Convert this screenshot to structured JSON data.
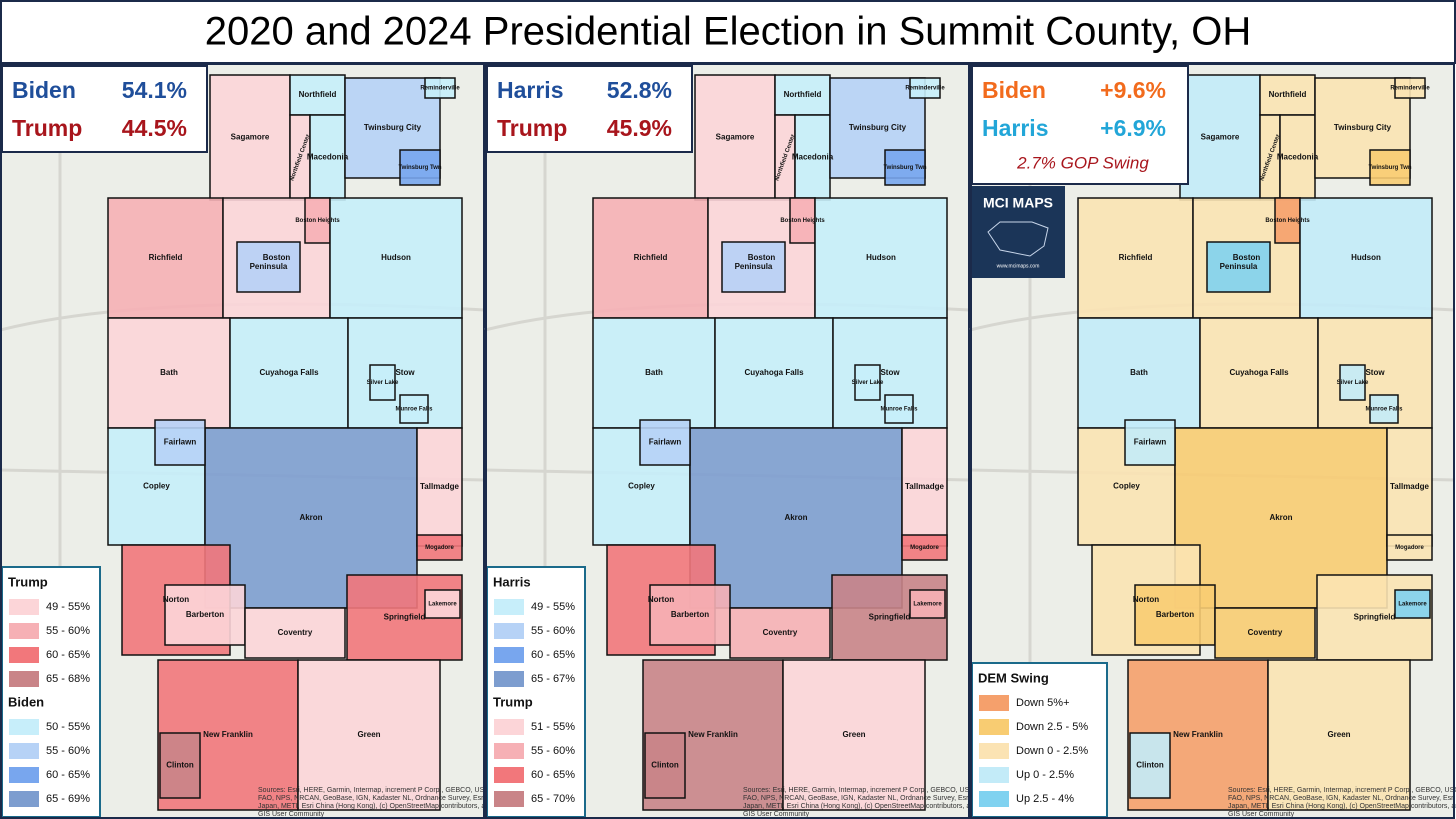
{
  "title": "2020 and 2024 Presidential Election in Summit County, OH",
  "places": [
    "Sagamore",
    "Northfield",
    "Northfield Center",
    "Macedonia",
    "Twinsburg City",
    "Twinsburg Twn",
    "Reminderville",
    "Richfield",
    "Boston",
    "Boston Heights",
    "Hudson",
    "Peninsula",
    "Bath",
    "Cuyahoga Falls",
    "Stow",
    "Silver Lake",
    "Munroe Falls",
    "Copley",
    "Akron",
    "Fairlawn",
    "Tallmadge",
    "Mogadore",
    "Norton",
    "Springfield",
    "Lakemore",
    "Barberton",
    "Coventry",
    "New Franklin",
    "Green",
    "Clinton"
  ],
  "panels": [
    {
      "results": [
        {
          "name": "Biden",
          "value": "54.1%",
          "color": "#1f4e9a"
        },
        {
          "name": "Trump",
          "value": "44.5%",
          "color": "#a8151c"
        }
      ],
      "legend": [
        {
          "title": "Trump",
          "items": [
            {
              "label": "49 - 55%",
              "color": "#fcd5d8"
            },
            {
              "label": "55 - 60%",
              "color": "#f6b0b5"
            },
            {
              "label": "60 - 65%",
              "color": "#f2777b"
            },
            {
              "label": "65 - 68%",
              "color": "#c98488"
            }
          ]
        },
        {
          "title": "Biden",
          "items": [
            {
              "label": "50 - 55%",
              "color": "#c7eefa"
            },
            {
              "label": "55 - 60%",
              "color": "#b6d2f6"
            },
            {
              "label": "60 - 65%",
              "color": "#78a6ee"
            },
            {
              "label": "65 - 69%",
              "color": "#7d9dcf"
            }
          ]
        }
      ],
      "fills": [
        "#fcd5d8",
        "#c7eefa",
        "#fcd5d8",
        "#c7eefa",
        "#b6d2f6",
        "#78a6ee",
        "#c7eefa",
        "#f6b0b5",
        "#fcd5d8",
        "#f6b0b5",
        "#c7eefa",
        "#b6d2f6",
        "#fcd5d8",
        "#c7eefa",
        "#c7eefa",
        "#c7eefa",
        "#c7eefa",
        "#c7eefa",
        "#7d9dcf",
        "#b6d2f6",
        "#fcd5d8",
        "#f2777b",
        "#f2777b",
        "#f2777b",
        "#fcd5d8",
        "#fcd5d8",
        "#fcd5d8",
        "#f2777b",
        "#fcd5d8",
        "#c98488"
      ]
    },
    {
      "results": [
        {
          "name": "Harris",
          "value": "52.8%",
          "color": "#1f4e9a"
        },
        {
          "name": "Trump",
          "value": "45.9%",
          "color": "#a8151c"
        }
      ],
      "legend": [
        {
          "title": "Harris",
          "items": [
            {
              "label": "49 - 55%",
              "color": "#c7eefa"
            },
            {
              "label": "55 - 60%",
              "color": "#b6d2f6"
            },
            {
              "label": "60 - 65%",
              "color": "#78a6ee"
            },
            {
              "label": "65 - 67%",
              "color": "#7d9dcf"
            }
          ]
        },
        {
          "title": "Trump",
          "items": [
            {
              "label": "51 - 55%",
              "color": "#fcd5d8"
            },
            {
              "label": "55 - 60%",
              "color": "#f6b0b5"
            },
            {
              "label": "60 - 65%",
              "color": "#f2777b"
            },
            {
              "label": "65 - 70%",
              "color": "#c98488"
            }
          ]
        }
      ],
      "fills": [
        "#fcd5d8",
        "#c7eefa",
        "#fcd5d8",
        "#c7eefa",
        "#b6d2f6",
        "#78a6ee",
        "#c7eefa",
        "#f6b0b5",
        "#fcd5d8",
        "#f6b0b5",
        "#c7eefa",
        "#b6d2f6",
        "#c7eefa",
        "#c7eefa",
        "#c7eefa",
        "#c7eefa",
        "#c7eefa",
        "#c7eefa",
        "#7d9dcf",
        "#b6d2f6",
        "#fcd5d8",
        "#f2777b",
        "#f2777b",
        "#c98488",
        "#f6b0b5",
        "#f6b0b5",
        "#f6b0b5",
        "#c98488",
        "#fcd5d8",
        "#c98488"
      ]
    },
    {
      "results": [
        {
          "name": "Biden",
          "value": "+9.6%",
          "color": "#f26b1d"
        },
        {
          "name": "Harris",
          "value": "+6.9%",
          "color": "#22a6d8"
        }
      ],
      "note": "2.7% GOP Swing",
      "legend": [
        {
          "title": "DEM Swing",
          "items": [
            {
              "label": "Down 5%+",
              "color": "#f5a06c"
            },
            {
              "label": "Down 2.5 - 5%",
              "color": "#f8cc72"
            },
            {
              "label": "Down 0 - 2.5%",
              "color": "#fbe3b3"
            },
            {
              "label": "Up 0 - 2.5%",
              "color": "#c3ebf8"
            },
            {
              "label": "Up 2.5 - 4%",
              "color": "#80d2f0"
            }
          ]
        }
      ],
      "fills": [
        "#c3ebf8",
        "#fbe3b3",
        "#fbe3b3",
        "#fbe3b3",
        "#fbe3b3",
        "#f8cc72",
        "#fbe3b3",
        "#fbe3b3",
        "#fbe3b3",
        "#f5a06c",
        "#c3ebf8",
        "#80d2f0",
        "#c3ebf8",
        "#fbe3b3",
        "#fbe3b3",
        "#c3ebf8",
        "#c3ebf8",
        "#fbe3b3",
        "#f8cc72",
        "#c3ebf8",
        "#fbe3b3",
        "#fbe3b3",
        "#fbe3b3",
        "#fbe3b3",
        "#80d2f0",
        "#f8cc72",
        "#f8cc72",
        "#f5a06c",
        "#fbe3b3",
        "#c3ebf8"
      ]
    }
  ],
  "logo": {
    "title": "MCI MAPS",
    "url": "www.mcimaps.com"
  },
  "sources": [
    "Sources: Esri, HERE, Garmin, Intermap, increment P Corp., GEBCO, USGS,",
    "FAO, NPS, NRCAN, GeoBase, IGN, Kadaster NL, Ordnance Survey, Esri",
    "Japan, METI, Esri China (Hong Kong), (c) OpenStreetMap contributors, and the",
    "GIS User Community"
  ]
}
